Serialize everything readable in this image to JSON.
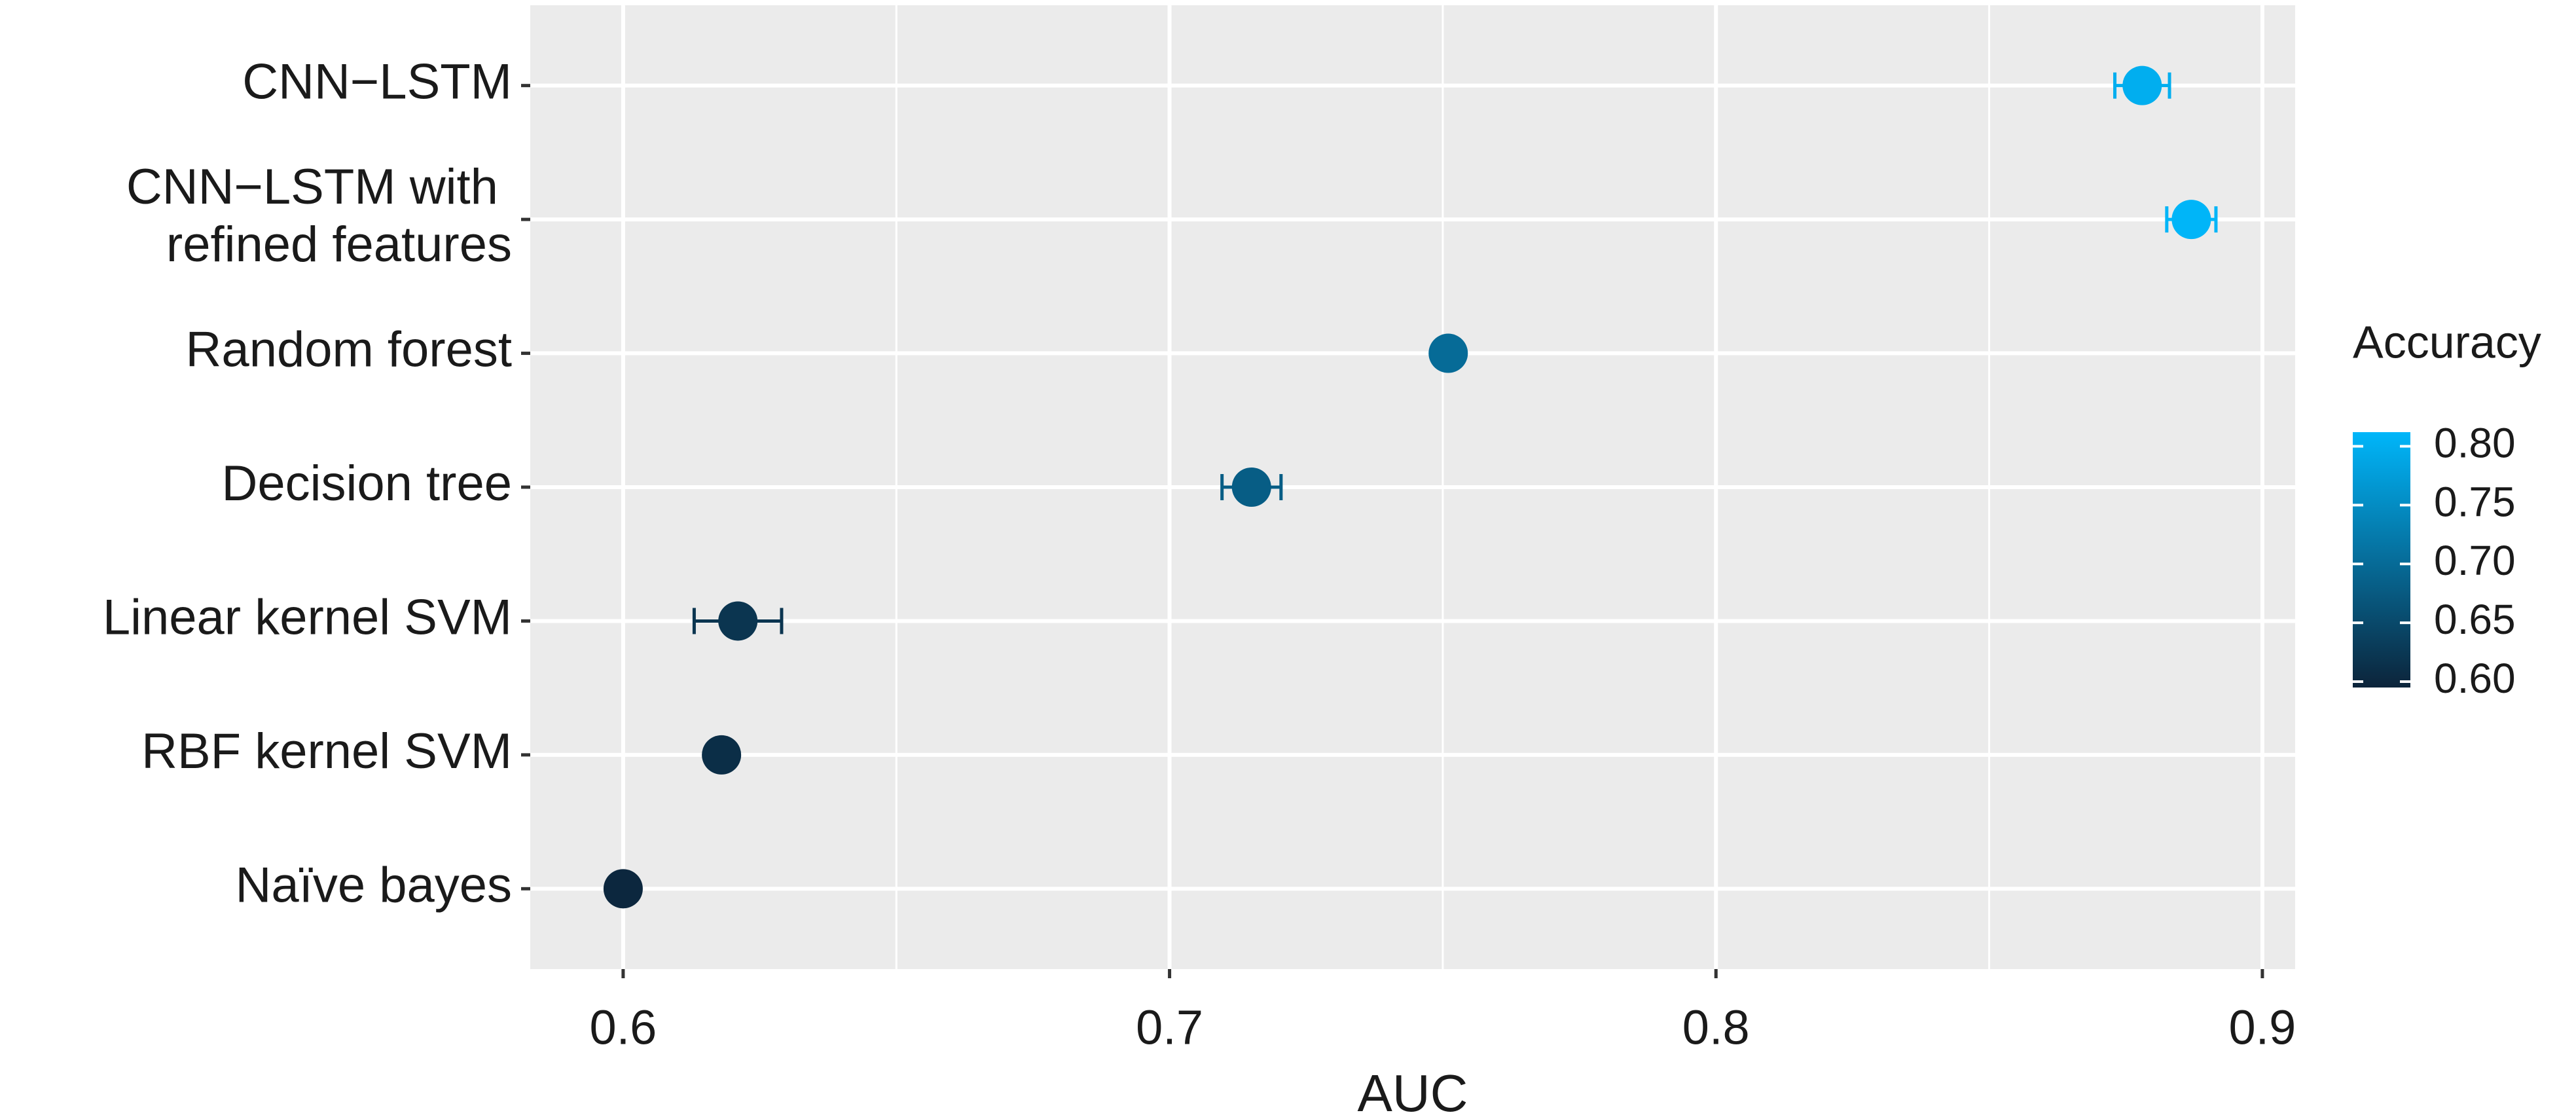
{
  "chart_data": {
    "type": "dot",
    "x_label": "AUC",
    "legend_title": "Accuracy",
    "categories": [
      "CNN−LSTM",
      "CNN−LSTM with refined features",
      "Random forest",
      "Decision tree",
      "Linear kernel SVM",
      "RBF kernel SVM",
      "Naïve bayes"
    ],
    "values": [
      0.878,
      0.887,
      0.751,
      0.715,
      0.621,
      0.618,
      0.6
    ],
    "errors": [
      0.005,
      0.0045,
      0.002,
      0.0054,
      0.008,
      0.001,
      0.001
    ],
    "accuracy": [
      0.8,
      0.81,
      0.7,
      0.68,
      0.62,
      0.61,
      0.6
    ],
    "color_low": "#0c243a",
    "color_high": "#00b6fa",
    "colorlim": [
      0.595,
      0.812
    ],
    "colorticks": [
      {
        "value": 0.6,
        "label": "0.60"
      },
      {
        "value": 0.65,
        "label": "0.65"
      },
      {
        "value": 0.7,
        "label": "0.70"
      },
      {
        "value": 0.75,
        "label": "0.75"
      },
      {
        "value": 0.8,
        "label": "0.80"
      }
    ],
    "xlim": [
      0.583,
      0.906
    ],
    "xticks": [
      0.6,
      0.7,
      0.8,
      0.9
    ],
    "xminor": [
      0.65,
      0.75,
      0.85
    ],
    "grid": true,
    "panel_color": "#ebebeb"
  }
}
